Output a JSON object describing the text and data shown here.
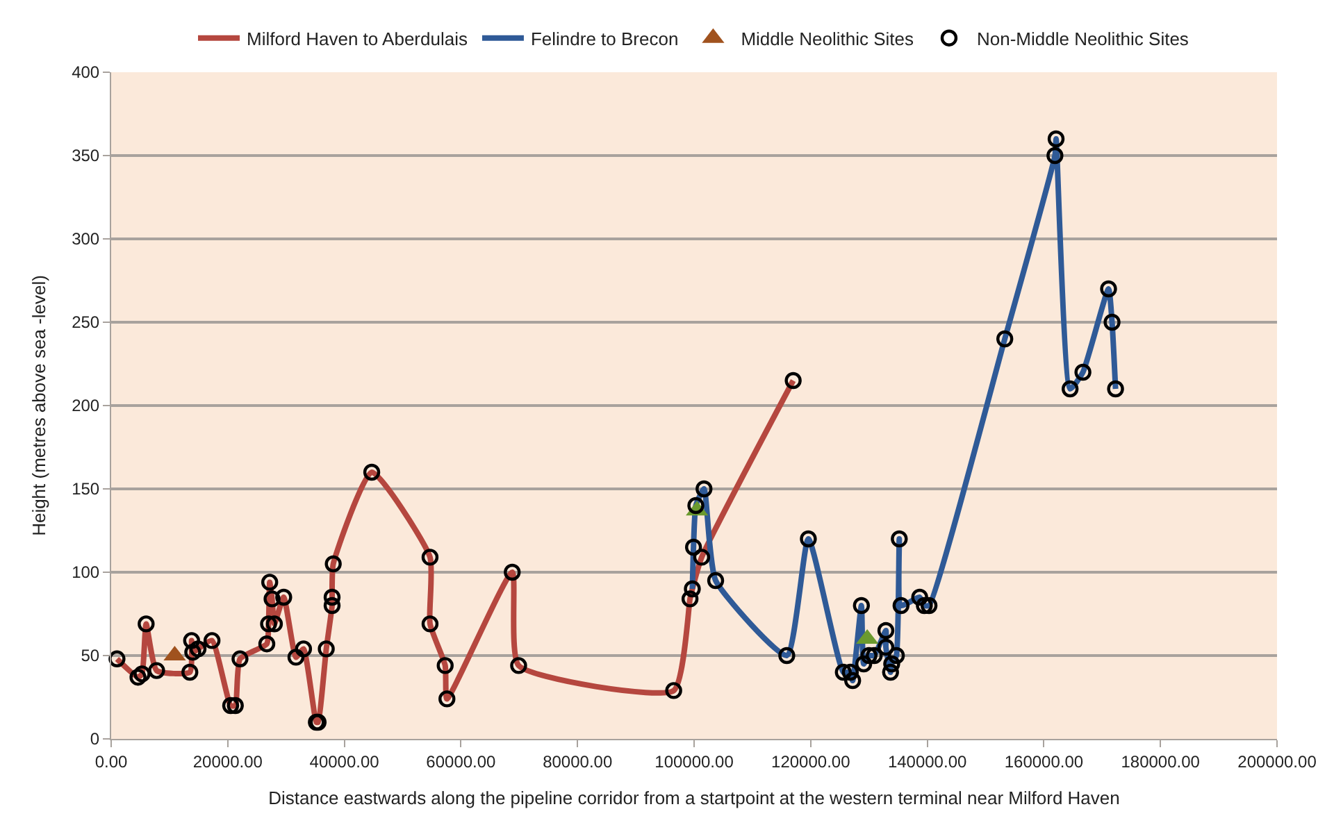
{
  "chart_data": {
    "type": "line",
    "xlabel": "Distance eastwards along the pipeline corridor from a startpoint at the western terminal near Milford Haven",
    "ylabel": "Height (metres above sea -level)",
    "series": [
      {
        "name": "Milford Haven to Aberdulais",
        "color": "#b5473f",
        "marker": "none",
        "x": [
          1000,
          4600,
          5300,
          6000,
          7800,
          13500,
          13800,
          14000,
          14900,
          17300,
          20500,
          21300,
          22100,
          26700,
          27000,
          27200,
          27600,
          28000,
          29600,
          31700,
          33000,
          35200,
          35500,
          36900,
          37900,
          37900,
          38100,
          44700,
          54700,
          54700,
          57300,
          57600,
          68800,
          69900,
          96500,
          99300,
          99700,
          101300,
          117000
        ],
        "values": [
          48,
          37,
          39,
          69,
          41,
          40,
          59,
          52,
          54,
          59,
          20,
          20,
          48,
          57,
          69,
          94,
          84,
          69,
          85,
          49,
          54,
          10,
          10,
          54,
          80,
          85,
          105,
          160,
          109,
          69,
          44,
          24,
          100,
          44,
          29,
          84,
          90,
          109,
          215
        ]
      },
      {
        "name": "Felindre to Brecon",
        "color": "#2f5a97",
        "marker": "none",
        "x": [
          99700,
          99900,
          100300,
          101700,
          103700,
          115900,
          119600,
          125600,
          126800,
          127200,
          128700,
          129100,
          130000,
          130900,
          132900,
          132900,
          133700,
          133900,
          134700,
          135200,
          135500,
          138700,
          139500,
          140300,
          153300,
          161900,
          162100,
          164500,
          166700,
          171100,
          171700,
          172300
        ],
        "values": [
          90,
          115,
          140,
          150,
          95,
          50,
          120,
          40,
          40,
          35,
          80,
          45,
          50,
          50,
          65,
          55,
          40,
          45,
          50,
          120,
          80,
          85,
          80,
          80,
          240,
          350,
          360,
          210,
          220,
          270,
          250,
          210
        ]
      },
      {
        "name": "Middle Neolithic Sites",
        "color": "#a0521e",
        "type": "scatter",
        "marker": "triangle",
        "x": [
          10900,
          100500,
          129700
        ],
        "values": [
          50,
          137,
          60
        ],
        "colors": [
          "#a0521e",
          "#6b9a2e",
          "#6b9a2e"
        ]
      },
      {
        "name": "Non-Middle Neolithic Sites",
        "color": "#000000",
        "type": "scatter",
        "marker": "circle",
        "x": [
          1000,
          4600,
          5300,
          6000,
          7800,
          13500,
          13800,
          14000,
          14900,
          17300,
          20500,
          21300,
          22100,
          26700,
          27000,
          27200,
          27600,
          28000,
          29600,
          31700,
          33000,
          35200,
          35500,
          36900,
          37900,
          37900,
          38100,
          44700,
          54700,
          54700,
          57300,
          57600,
          68800,
          69900,
          96500,
          99300,
          99700,
          101300,
          117000,
          99900,
          100300,
          101700,
          103700,
          115900,
          119600,
          125600,
          126800,
          127200,
          128700,
          129100,
          130000,
          130900,
          132900,
          132900,
          133700,
          133900,
          134700,
          135200,
          135500,
          138700,
          139500,
          140300,
          153300,
          161900,
          162100,
          164500,
          166700,
          171100,
          171700,
          172300
        ],
        "values": [
          48,
          37,
          39,
          69,
          41,
          40,
          59,
          52,
          54,
          59,
          20,
          20,
          48,
          57,
          69,
          94,
          84,
          69,
          85,
          49,
          54,
          10,
          10,
          54,
          80,
          85,
          105,
          160,
          109,
          69,
          44,
          24,
          100,
          44,
          29,
          84,
          90,
          109,
          215,
          115,
          140,
          150,
          95,
          50,
          120,
          40,
          40,
          35,
          80,
          45,
          50,
          50,
          65,
          55,
          40,
          45,
          50,
          120,
          80,
          85,
          80,
          80,
          240,
          350,
          360,
          210,
          220,
          270,
          250,
          210
        ]
      }
    ],
    "xlim": [
      0,
      200000
    ],
    "xticks": [
      {
        "value": 0,
        "label": "0.00"
      },
      {
        "value": 20000,
        "label": "20000.00"
      },
      {
        "value": 40000,
        "label": "40000.00"
      },
      {
        "value": 60000,
        "label": "60000.00"
      },
      {
        "value": 80000,
        "label": "80000.00"
      },
      {
        "value": 100000,
        "label": "100000.00"
      },
      {
        "value": 120000,
        "label": "120000.00"
      },
      {
        "value": 140000,
        "label": "140000.00"
      },
      {
        "value": 160000,
        "label": "160000.00"
      },
      {
        "value": 180000,
        "label": "180000.00"
      },
      {
        "value": 200000,
        "label": "200000.00"
      }
    ],
    "ylim": [
      0,
      400
    ],
    "yticks": [
      0,
      50,
      100,
      150,
      200,
      250,
      300,
      350,
      400
    ],
    "grid": "y",
    "legend": "top",
    "line_style": "solid"
  }
}
